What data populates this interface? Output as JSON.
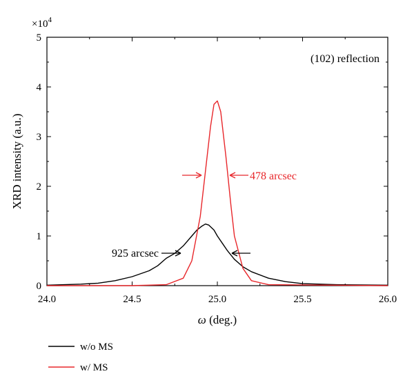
{
  "chart_data": {
    "type": "line",
    "title": "",
    "xlabel": "ω (deg.)",
    "xlabel_symbol": "ω",
    "xlabel_unit": "(deg.)",
    "ylabel": "XRD intensity (a.u.)",
    "y_multiplier_base": "×10",
    "y_multiplier_exp": "4",
    "xlim": [
      24.0,
      26.0
    ],
    "ylim": [
      0,
      5
    ],
    "x_ticks": [
      24.0,
      24.5,
      25.0,
      25.5,
      26.0
    ],
    "x_tick_labels": [
      "24.0",
      "24.5",
      "25.0",
      "25.5",
      "26.0"
    ],
    "y_ticks": [
      0,
      1,
      2,
      3,
      4,
      5
    ],
    "y_tick_labels": [
      "0",
      "1",
      "2",
      "3",
      "4",
      "5"
    ],
    "annotation_reflection": "(102) reflection",
    "annotation_red": "478 arcsec",
    "annotation_black": "925 arcsec",
    "legend_position": "bottom-left, below plot",
    "grid": false,
    "series": [
      {
        "name": "w/o MS",
        "color": "#000000",
        "x": [
          24.0,
          24.2,
          24.3,
          24.4,
          24.5,
          24.6,
          24.65,
          24.7,
          24.75,
          24.8,
          24.85,
          24.88,
          24.91,
          24.93,
          24.95,
          24.98,
          25.0,
          25.03,
          25.06,
          25.1,
          25.15,
          25.2,
          25.3,
          25.4,
          25.5,
          25.7,
          26.0
        ],
        "values": [
          0.01,
          0.03,
          0.05,
          0.1,
          0.18,
          0.3,
          0.4,
          0.55,
          0.65,
          0.8,
          1.0,
          1.12,
          1.2,
          1.24,
          1.22,
          1.12,
          1.0,
          0.85,
          0.7,
          0.53,
          0.38,
          0.28,
          0.15,
          0.08,
          0.04,
          0.02,
          0.01
        ]
      },
      {
        "name": "w/ MS",
        "color": "#e8262a",
        "x": [
          24.0,
          24.5,
          24.7,
          24.8,
          24.85,
          24.9,
          24.93,
          24.96,
          24.98,
          25.0,
          25.02,
          25.05,
          25.08,
          25.1,
          25.15,
          25.2,
          25.3,
          26.0
        ],
        "values": [
          0.0,
          0.0,
          0.02,
          0.15,
          0.5,
          1.4,
          2.3,
          3.2,
          3.65,
          3.72,
          3.5,
          2.6,
          1.6,
          1.0,
          0.35,
          0.1,
          0.02,
          0.0
        ]
      }
    ]
  }
}
